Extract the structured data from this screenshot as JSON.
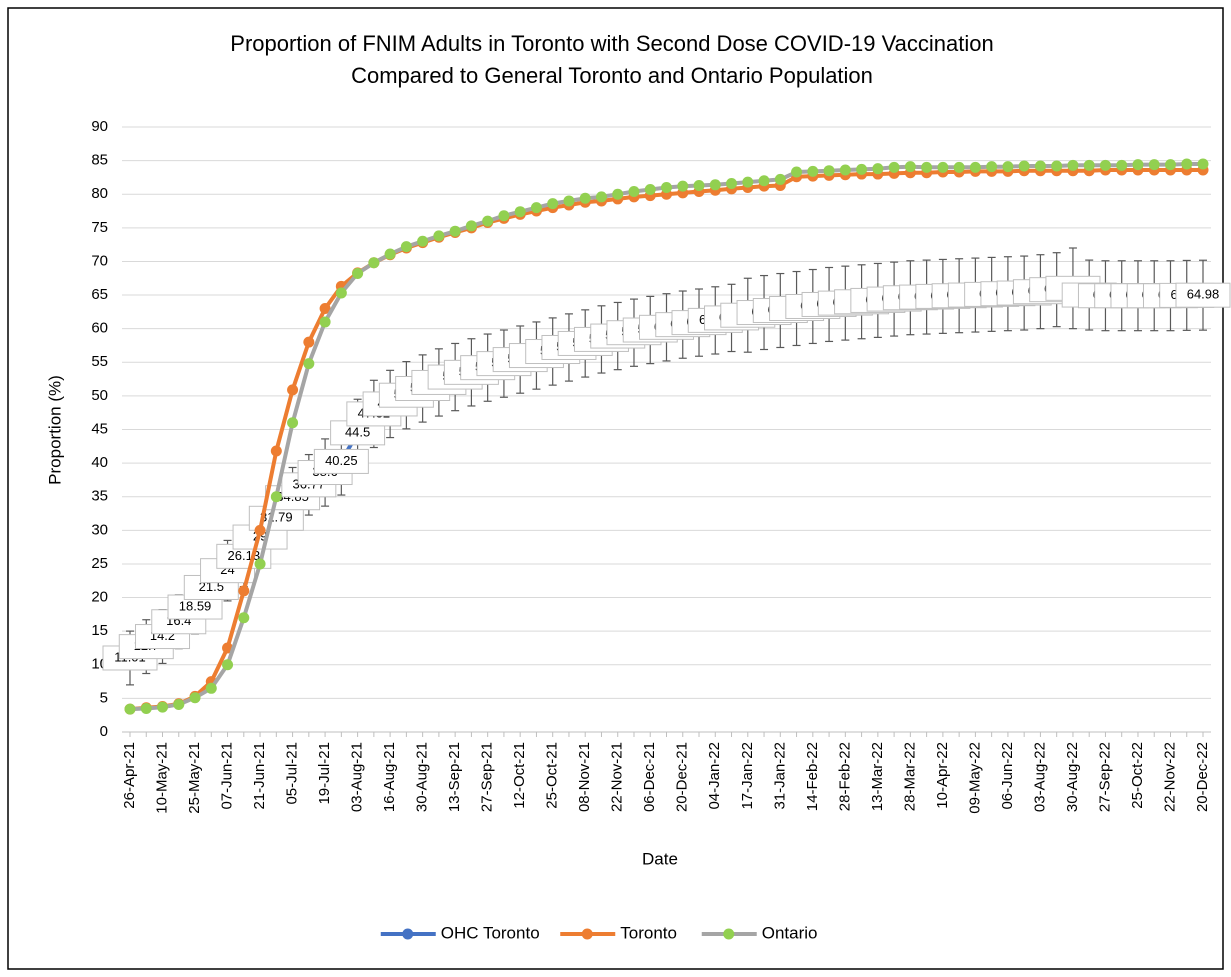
{
  "chart_data": {
    "type": "line",
    "title": "Proportion of FNIM Adults in Toronto with Second Dose COVID-19 Vaccination",
    "subtitle": "Compared to General Toronto and Ontario Population",
    "x_label": "Date",
    "y_label": "Proportion (%)",
    "categories": [
      "26-Apr-21",
      null,
      "10-May-21",
      null,
      "25-May-21",
      null,
      "07-Jun-21",
      null,
      "21-Jun-21",
      null,
      "05-Jul-21",
      null,
      "19-Jul-21",
      null,
      "03-Aug-21",
      null,
      "16-Aug-21",
      null,
      "30-Aug-21",
      null,
      "13-Sep-21",
      null,
      "27-Sep-21",
      null,
      "12-Oct-21",
      null,
      "25-Oct-21",
      null,
      "08-Nov-21",
      null,
      "22-Nov-21",
      null,
      "06-Dec-21",
      null,
      "20-Dec-21",
      null,
      "04-Jan-22",
      null,
      "17-Jan-22",
      null,
      "31-Jan-22",
      null,
      "14-Feb-22",
      null,
      "28-Feb-22",
      null,
      "13-Mar-22",
      null,
      "28-Mar-22",
      null,
      "10-Apr-22",
      null,
      "09-May-22",
      null,
      "06-Jun-22",
      null,
      "03-Aug-22",
      null,
      "30-Aug-22",
      null,
      "27-Sep-22",
      null,
      "25-Oct-22",
      null,
      "22-Nov-22",
      null,
      "20-Dec-22"
    ],
    "series": [
      {
        "name": "OHC Toronto",
        "color": "#4472c4",
        "data_labels": true,
        "values": [
          11.01,
          12.7,
          14.2,
          16.4,
          18.59,
          21.5,
          24.0,
          26.13,
          29.0,
          31.79,
          34.85,
          36.77,
          38.6,
          40.25,
          44.5,
          47.32,
          48.8,
          50.1,
          51.1,
          52.0,
          52.8,
          53.5,
          54.2,
          54.8,
          55.4,
          56.0,
          56.6,
          57.2,
          57.8,
          58.4,
          58.9,
          59.4,
          59.8,
          60.2,
          60.6,
          60.9,
          61.23,
          61.6,
          62.0,
          62.4,
          62.7,
          63.0,
          63.3,
          63.6,
          63.8,
          64.0,
          64.2,
          64.4,
          64.6,
          64.7,
          64.8,
          64.9,
          65.0,
          65.1,
          65.2,
          65.3,
          65.5,
          65.8,
          66.0,
          65.0,
          64.9,
          64.9,
          64.9,
          64.9,
          64.9,
          64.95,
          64.98
        ],
        "errors": [
          4,
          4,
          4,
          4,
          4,
          4,
          4.5,
          4.5,
          4.5,
          4.5,
          4.5,
          4.5,
          5,
          5,
          5,
          5,
          5,
          5,
          5,
          5,
          5,
          5,
          5,
          5,
          5,
          5,
          5,
          5,
          5,
          5,
          5,
          5,
          5,
          5,
          5,
          5,
          5,
          5,
          5.5,
          5.5,
          5.5,
          5.5,
          5.5,
          5.5,
          5.5,
          5.5,
          5.5,
          5.5,
          5.5,
          5.5,
          5.5,
          5.5,
          5.5,
          5.5,
          5.5,
          5.5,
          5.5,
          5.5,
          6,
          5.2,
          5.2,
          5.2,
          5.2,
          5.2,
          5.2,
          5.2,
          5.2
        ]
      },
      {
        "name": "Toronto",
        "color": "#ed7d31",
        "values": [
          3.4,
          3.6,
          3.8,
          4.2,
          5.3,
          7.5,
          12.5,
          21.0,
          30.0,
          41.8,
          50.9,
          58.0,
          63.0,
          66.3,
          68.3,
          69.8,
          71.0,
          72.0,
          72.8,
          73.6,
          74.3,
          75.0,
          75.8,
          76.4,
          77.0,
          77.5,
          78.0,
          78.4,
          78.8,
          79.0,
          79.3,
          79.6,
          79.8,
          80.0,
          80.2,
          80.4,
          80.6,
          80.8,
          81.0,
          81.2,
          81.3,
          82.6,
          82.7,
          82.8,
          82.9,
          83.0,
          83.0,
          83.1,
          83.2,
          83.2,
          83.3,
          83.3,
          83.4,
          83.4,
          83.4,
          83.5,
          83.5,
          83.5,
          83.5,
          83.5,
          83.6,
          83.6,
          83.6,
          83.6,
          83.6,
          83.6,
          83.6
        ]
      },
      {
        "name": "Ontario",
        "color": "#a5a5a5",
        "marker_color": "#92d050",
        "values": [
          3.4,
          3.5,
          3.7,
          4.1,
          5.1,
          6.5,
          10.0,
          17.0,
          25.0,
          35.0,
          46.0,
          54.8,
          61.0,
          65.3,
          68.2,
          69.8,
          71.1,
          72.2,
          73.0,
          73.8,
          74.5,
          75.3,
          76.0,
          76.8,
          77.4,
          78.0,
          78.6,
          79.0,
          79.4,
          79.6,
          80.0,
          80.4,
          80.7,
          81.0,
          81.2,
          81.3,
          81.4,
          81.6,
          81.8,
          82.0,
          82.2,
          83.3,
          83.4,
          83.5,
          83.6,
          83.7,
          83.8,
          84.0,
          84.1,
          84.0,
          84.0,
          84.0,
          84.0,
          84.1,
          84.1,
          84.2,
          84.2,
          84.2,
          84.3,
          84.3,
          84.3,
          84.3,
          84.4,
          84.4,
          84.4,
          84.5,
          84.5
        ]
      }
    ],
    "ylim": [
      0,
      90
    ],
    "yticks": [
      0,
      5,
      10,
      15,
      20,
      25,
      30,
      35,
      40,
      45,
      50,
      55,
      60,
      65,
      70,
      75,
      80,
      85,
      90
    ],
    "grid": true,
    "legend": "bottom"
  }
}
